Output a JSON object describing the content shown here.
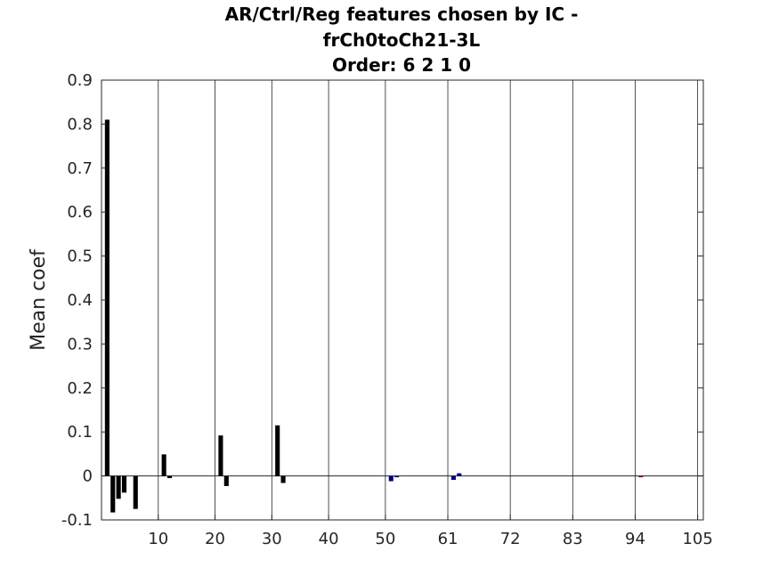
{
  "chart_data": {
    "type": "bar",
    "title_lines": [
      "AR/Ctrl/Reg features chosen by IC -",
      "frCh0toCh21-3L",
      "Order: 6 2 1 0"
    ],
    "xlabel": "",
    "ylabel": "Mean coef",
    "xlim": [
      0,
      106
    ],
    "ylim": [
      -0.1,
      0.9
    ],
    "x_ticks": [
      {
        "value": 10,
        "label": "10"
      },
      {
        "value": 20,
        "label": "20"
      },
      {
        "value": 30,
        "label": "30"
      },
      {
        "value": 40,
        "label": "40"
      },
      {
        "value": 50,
        "label": "50"
      },
      {
        "value": 61,
        "label": "61"
      },
      {
        "value": 72,
        "label": "72"
      },
      {
        "value": 83,
        "label": "83"
      },
      {
        "value": 94,
        "label": "94"
      },
      {
        "value": 105,
        "label": "105"
      }
    ],
    "y_ticks": [
      {
        "value": -0.1,
        "label": "-0.1"
      },
      {
        "value": 0,
        "label": "0"
      },
      {
        "value": 0.1,
        "label": "0.1"
      },
      {
        "value": 0.2,
        "label": "0.2"
      },
      {
        "value": 0.3,
        "label": "0.3"
      },
      {
        "value": 0.4,
        "label": "0.4"
      },
      {
        "value": 0.5,
        "label": "0.5"
      },
      {
        "value": 0.6,
        "label": "0.6"
      },
      {
        "value": 0.7,
        "label": "0.7"
      },
      {
        "value": 0.8,
        "label": "0.8"
      },
      {
        "value": 0.9,
        "label": "0.9"
      }
    ],
    "vertical_grid_x": [
      10,
      20,
      30,
      40,
      50,
      61,
      72,
      83,
      94,
      105
    ],
    "grid": true,
    "zero_line": true,
    "series": [
      {
        "color": "#000000",
        "x": [
          1,
          2,
          3,
          4,
          6,
          11,
          12,
          21,
          22,
          31,
          32
        ],
        "values": [
          0.81,
          -0.083,
          -0.052,
          -0.038,
          -0.075,
          0.049,
          -0.005,
          0.092,
          -0.023,
          0.115,
          -0.016
        ]
      },
      {
        "color": "#00007f",
        "x": [
          51,
          52,
          62,
          63
        ],
        "values": [
          -0.012,
          -0.003,
          -0.009,
          0.006
        ]
      },
      {
        "color": "#7f0000",
        "x": [
          95
        ],
        "values": [
          -0.003
        ]
      }
    ]
  }
}
